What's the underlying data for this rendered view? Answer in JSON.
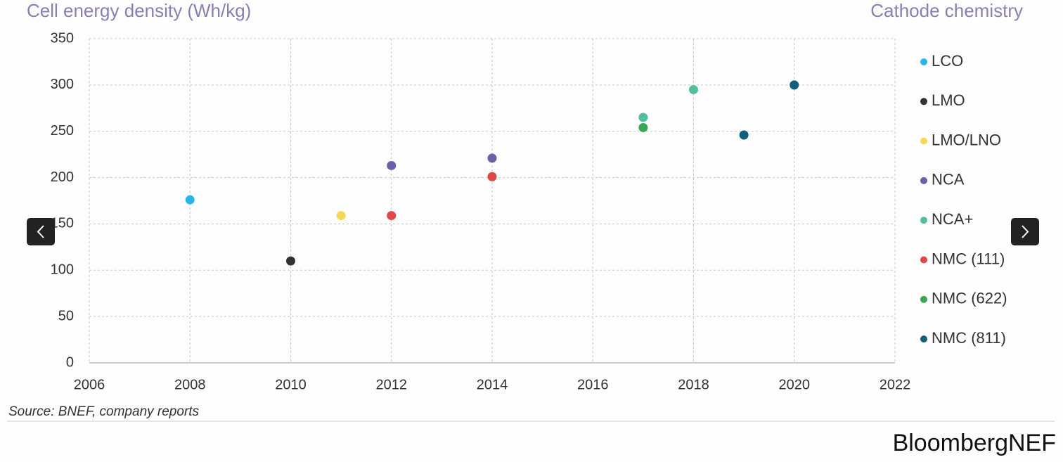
{
  "chart_data": {
    "type": "scatter",
    "y_axis_title": "Cell energy density (Wh/kg)",
    "legend_title": "Cathode chemistry",
    "source": "Source: BNEF, company reports",
    "brand": "BloombergNEF",
    "xlim": [
      2006,
      2022
    ],
    "xticks": [
      2006,
      2008,
      2010,
      2012,
      2014,
      2016,
      2018,
      2020,
      2022
    ],
    "ylim": [
      0,
      350
    ],
    "yticks": [
      0,
      50,
      100,
      150,
      200,
      250,
      300,
      350
    ],
    "grid": true,
    "legend": "right",
    "series": [
      {
        "name": "LCO",
        "color": "#29b5e8",
        "x": [
          2008
        ],
        "values": [
          176
        ]
      },
      {
        "name": "LMO",
        "color": "#333333",
        "x": [
          2010
        ],
        "values": [
          110
        ]
      },
      {
        "name": "LMO/LNO",
        "color": "#f5d85a",
        "x": [
          2011
        ],
        "values": [
          159
        ]
      },
      {
        "name": "NCA",
        "color": "#6a5fa8",
        "x": [
          2012,
          2014
        ],
        "values": [
          213,
          221
        ]
      },
      {
        "name": "NCA+",
        "color": "#4fbfa0",
        "x": [
          2017,
          2018
        ],
        "values": [
          265,
          295
        ]
      },
      {
        "name": "NMC (111)",
        "color": "#e04848",
        "x": [
          2012,
          2014
        ],
        "values": [
          159,
          201
        ]
      },
      {
        "name": "NMC (622)",
        "color": "#3aa655",
        "x": [
          2017
        ],
        "values": [
          254
        ]
      },
      {
        "name": "NMC (811)",
        "color": "#0e5f78",
        "x": [
          2019,
          2020
        ],
        "values": [
          246,
          300
        ]
      }
    ]
  }
}
